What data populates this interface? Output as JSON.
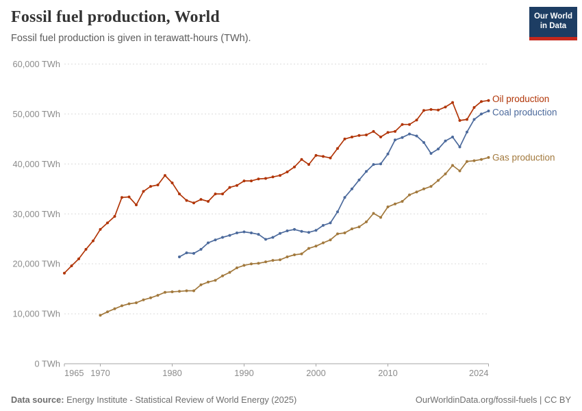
{
  "header": {
    "title": "Fossil fuel production, World",
    "subtitle": "Fossil fuel production is given in terawatt-hours (TWh).",
    "logo": {
      "line1": "Our World",
      "line2": "in Data",
      "bg_color": "#1d3d63",
      "accent_color": "#c5281c"
    }
  },
  "chart_data": {
    "type": "line",
    "title": "Fossil fuel production, World",
    "unit": "TWh",
    "grid": true,
    "legend_position": "end-of-line",
    "x_axis": {
      "min": 1965,
      "max": 2024,
      "ticks": [
        1965,
        1970,
        1980,
        1990,
        2000,
        2010,
        2024
      ]
    },
    "y_axis": {
      "min": 0,
      "max": 60000,
      "tick_step": 10000,
      "unit_suffix": " TWh"
    },
    "series": [
      {
        "name": "Oil production",
        "color": "#b13507",
        "points": [
          [
            1965,
            18150
          ],
          [
            1966,
            19600
          ],
          [
            1967,
            21000
          ],
          [
            1968,
            22900
          ],
          [
            1969,
            24600
          ],
          [
            1970,
            26900
          ],
          [
            1971,
            28200
          ],
          [
            1972,
            29500
          ],
          [
            1973,
            33300
          ],
          [
            1974,
            33400
          ],
          [
            1975,
            31800
          ],
          [
            1976,
            34500
          ],
          [
            1977,
            35500
          ],
          [
            1978,
            35800
          ],
          [
            1979,
            37700
          ],
          [
            1980,
            36200
          ],
          [
            1981,
            34000
          ],
          [
            1982,
            32700
          ],
          [
            1983,
            32200
          ],
          [
            1984,
            32900
          ],
          [
            1985,
            32500
          ],
          [
            1986,
            34000
          ],
          [
            1987,
            34000
          ],
          [
            1988,
            35300
          ],
          [
            1989,
            35700
          ],
          [
            1990,
            36600
          ],
          [
            1991,
            36600
          ],
          [
            1992,
            37000
          ],
          [
            1993,
            37100
          ],
          [
            1994,
            37400
          ],
          [
            1995,
            37700
          ],
          [
            1996,
            38400
          ],
          [
            1997,
            39400
          ],
          [
            1998,
            40900
          ],
          [
            1999,
            39900
          ],
          [
            2000,
            41700
          ],
          [
            2001,
            41500
          ],
          [
            2002,
            41200
          ],
          [
            2003,
            43100
          ],
          [
            2004,
            45000
          ],
          [
            2005,
            45400
          ],
          [
            2006,
            45700
          ],
          [
            2007,
            45800
          ],
          [
            2008,
            46500
          ],
          [
            2009,
            45400
          ],
          [
            2010,
            46300
          ],
          [
            2011,
            46500
          ],
          [
            2012,
            47900
          ],
          [
            2013,
            47900
          ],
          [
            2014,
            48800
          ],
          [
            2015,
            50700
          ],
          [
            2016,
            50900
          ],
          [
            2017,
            50800
          ],
          [
            2018,
            51400
          ],
          [
            2019,
            52300
          ],
          [
            2020,
            48700
          ],
          [
            2021,
            48900
          ],
          [
            2022,
            51300
          ],
          [
            2023,
            52500
          ],
          [
            2024,
            52700
          ]
        ]
      },
      {
        "name": "Coal production",
        "color": "#4c6a9c",
        "points": [
          [
            1981,
            21400
          ],
          [
            1982,
            22200
          ],
          [
            1983,
            22100
          ],
          [
            1984,
            22900
          ],
          [
            1985,
            24200
          ],
          [
            1986,
            24800
          ],
          [
            1987,
            25300
          ],
          [
            1988,
            25700
          ],
          [
            1989,
            26200
          ],
          [
            1990,
            26400
          ],
          [
            1991,
            26200
          ],
          [
            1992,
            25900
          ],
          [
            1993,
            24900
          ],
          [
            1994,
            25300
          ],
          [
            1995,
            26100
          ],
          [
            1996,
            26600
          ],
          [
            1997,
            26900
          ],
          [
            1998,
            26500
          ],
          [
            1999,
            26300
          ],
          [
            2000,
            26700
          ],
          [
            2001,
            27700
          ],
          [
            2002,
            28200
          ],
          [
            2003,
            30400
          ],
          [
            2004,
            33300
          ],
          [
            2005,
            35000
          ],
          [
            2006,
            36800
          ],
          [
            2007,
            38500
          ],
          [
            2008,
            39900
          ],
          [
            2009,
            40000
          ],
          [
            2010,
            42000
          ],
          [
            2011,
            44800
          ],
          [
            2012,
            45300
          ],
          [
            2013,
            46000
          ],
          [
            2014,
            45600
          ],
          [
            2015,
            44300
          ],
          [
            2016,
            42100
          ],
          [
            2017,
            43000
          ],
          [
            2018,
            44600
          ],
          [
            2019,
            45400
          ],
          [
            2020,
            43400
          ],
          [
            2021,
            46400
          ],
          [
            2022,
            48900
          ],
          [
            2023,
            50000
          ],
          [
            2024,
            50600
          ]
        ]
      },
      {
        "name": "Gas production",
        "color": "#a2793d",
        "points": [
          [
            1970,
            9700
          ],
          [
            1971,
            10400
          ],
          [
            1972,
            11000
          ],
          [
            1973,
            11600
          ],
          [
            1974,
            12000
          ],
          [
            1975,
            12200
          ],
          [
            1976,
            12800
          ],
          [
            1977,
            13200
          ],
          [
            1978,
            13700
          ],
          [
            1979,
            14300
          ],
          [
            1980,
            14400
          ],
          [
            1981,
            14500
          ],
          [
            1982,
            14600
          ],
          [
            1983,
            14600
          ],
          [
            1984,
            15800
          ],
          [
            1985,
            16350
          ],
          [
            1986,
            16700
          ],
          [
            1987,
            17600
          ],
          [
            1988,
            18300
          ],
          [
            1989,
            19200
          ],
          [
            1990,
            19700
          ],
          [
            1991,
            20000
          ],
          [
            1992,
            20100
          ],
          [
            1993,
            20400
          ],
          [
            1994,
            20700
          ],
          [
            1995,
            20800
          ],
          [
            1996,
            21400
          ],
          [
            1997,
            21800
          ],
          [
            1998,
            22000
          ],
          [
            1999,
            23100
          ],
          [
            2000,
            23550
          ],
          [
            2001,
            24200
          ],
          [
            2002,
            24800
          ],
          [
            2003,
            26000
          ],
          [
            2004,
            26200
          ],
          [
            2005,
            27000
          ],
          [
            2006,
            27400
          ],
          [
            2007,
            28400
          ],
          [
            2008,
            30100
          ],
          [
            2009,
            29300
          ],
          [
            2010,
            31400
          ],
          [
            2011,
            32000
          ],
          [
            2012,
            32500
          ],
          [
            2013,
            33800
          ],
          [
            2014,
            34400
          ],
          [
            2015,
            35000
          ],
          [
            2016,
            35500
          ],
          [
            2017,
            36700
          ],
          [
            2018,
            38000
          ],
          [
            2019,
            39700
          ],
          [
            2020,
            38600
          ],
          [
            2021,
            40500
          ],
          [
            2022,
            40650
          ],
          [
            2023,
            40900
          ],
          [
            2024,
            41300
          ]
        ]
      }
    ]
  },
  "footer": {
    "source_label": "Data source:",
    "source_text": " Energy Institute - Statistical Review of World Energy (2025)",
    "link_text": "OurWorldinData.org/fossil-fuels | CC BY"
  }
}
